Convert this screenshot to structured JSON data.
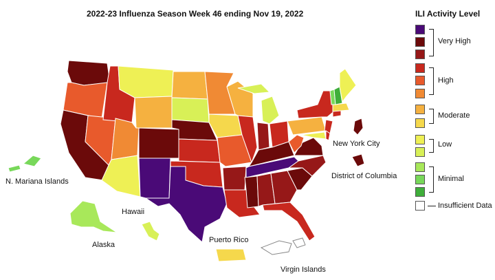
{
  "title": "2022-23 Influenza Season Week 46 ending Nov 19, 2022",
  "legend": {
    "title": "ILI Activity Level",
    "levels": [
      {
        "level": 13,
        "color": "#4a0a77"
      },
      {
        "level": 12,
        "color": "#6b0a0a"
      },
      {
        "level": 11,
        "color": "#961818"
      },
      {
        "level": 10,
        "color": "#c8281e"
      },
      {
        "level": 9,
        "color": "#e85a2c"
      },
      {
        "level": 8,
        "color": "#f08a34"
      },
      {
        "level": 7,
        "color": "#f5b140"
      },
      {
        "level": 6,
        "color": "#f5d84c"
      },
      {
        "level": 5,
        "color": "#eef055"
      },
      {
        "level": 4,
        "color": "#d8f057"
      },
      {
        "level": 3,
        "color": "#a8e85a"
      },
      {
        "level": 2,
        "color": "#78d85a"
      },
      {
        "level": 1,
        "color": "#3fae3a"
      },
      {
        "level": 0,
        "color": "#ffffff"
      }
    ],
    "groups": [
      {
        "label": "Very High"
      },
      {
        "label": "High"
      },
      {
        "label": "Moderate"
      },
      {
        "label": "Low"
      },
      {
        "label": "Minimal"
      },
      {
        "label": "Insufficient Data"
      }
    ]
  },
  "labels": {
    "mariana": "N. Mariana Islands",
    "hawaii": "Hawaii",
    "alaska": "Alaska",
    "puerto_rico": "Puerto Rico",
    "virgin_islands": "Virgin Islands",
    "nyc": "New York City",
    "dc": "District of Columbia"
  },
  "colors": {
    "purple": "#4a0a77",
    "maroon": "#6b0a0a",
    "dark_red": "#961818",
    "red": "#c8281e",
    "orange_red": "#e85a2c",
    "orange": "#f08a34",
    "light_orange": "#f5b140",
    "yellow": "#f5d84c",
    "yellow_green": "#eef055",
    "lime": "#d8f057",
    "light_green": "#a8e85a",
    "green": "#3fae3a",
    "border": "#ffffff"
  }
}
